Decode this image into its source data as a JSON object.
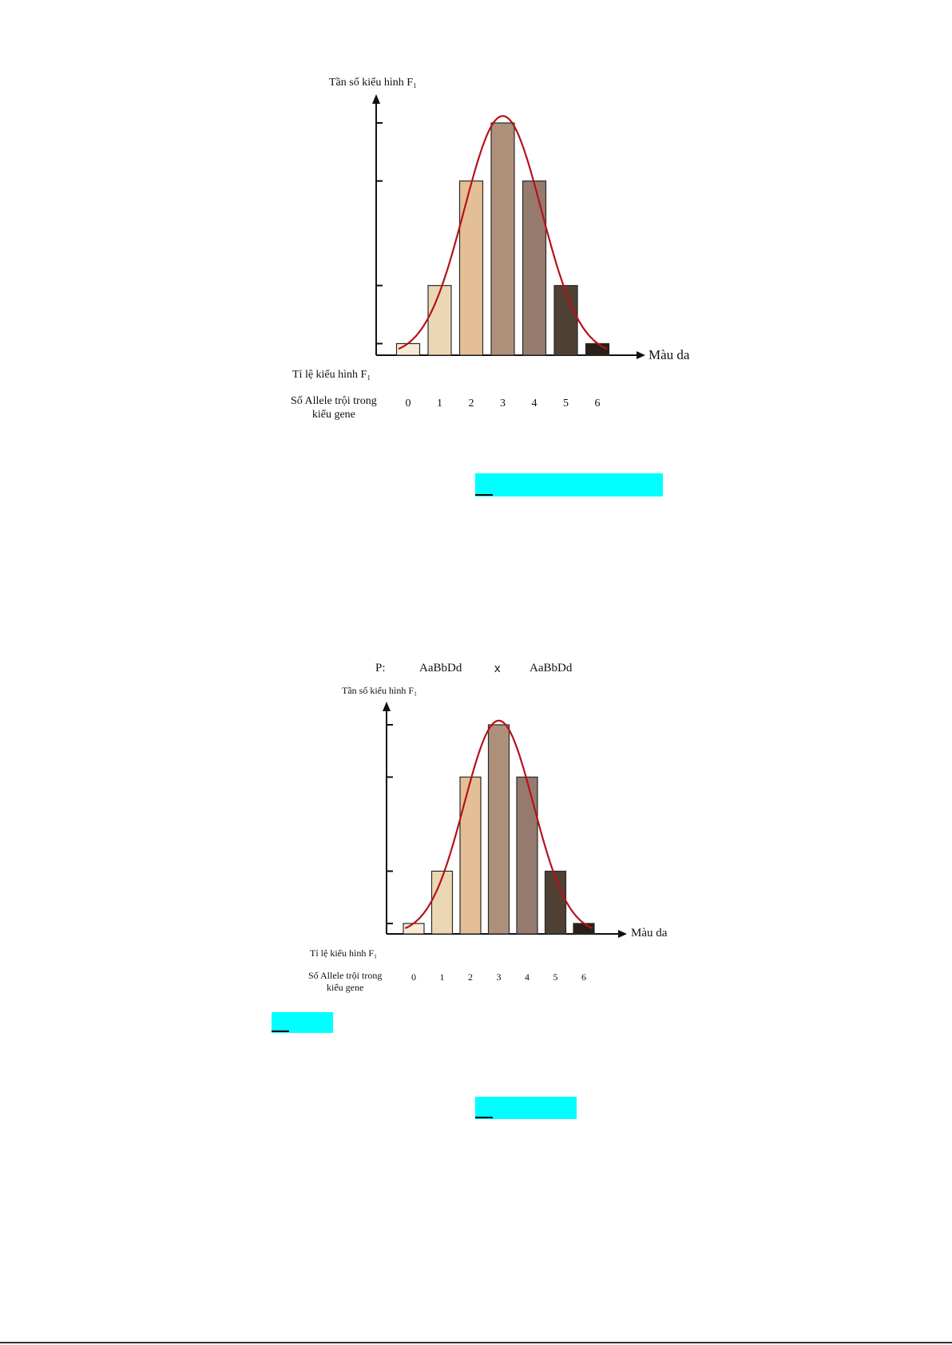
{
  "colors": {
    "curve": "#b5121b",
    "axis": "#111111",
    "highlight": "#00ffff",
    "bars": [
      "#f8ead6",
      "#ecd7b5",
      "#e4bf96",
      "#ae907a",
      "#957a6d",
      "#4f4034",
      "#2a2018"
    ]
  },
  "figure1": {
    "ylabel": "Tần số kiểu hình F₁",
    "xlabel": "Màu da",
    "row1_label": "Tỉ lệ kiểu hình F₁",
    "row2_label_line1": "Số Allele trội trong",
    "row2_label_line2": "kiểu gene"
  },
  "figure2": {
    "cross_prefix": "P:",
    "parent1": "AaBbDd",
    "cross_symbol": "x",
    "parent2": "AaBbDd",
    "ylabel": "Tần số kiểu hình F₁",
    "xlabel": "Màu da",
    "row1_label": "Tỉ lệ kiểu hình F₁",
    "row2_label_line1": "Số Allele trội trong",
    "row2_label_line2": "kiểu gene"
  },
  "chart_data": [
    {
      "type": "bar",
      "categories": [
        "0",
        "1",
        "2",
        "3",
        "4",
        "5",
        "6"
      ],
      "values": [
        1,
        6,
        15,
        20,
        15,
        6,
        1
      ],
      "ylabel": "Tần số kiểu hình F₁",
      "xlabel": "Màu da",
      "ylim": [
        0,
        20
      ],
      "grid": false,
      "legend": "none",
      "overlay": "normal-curve"
    },
    {
      "type": "bar",
      "categories": [
        "0",
        "1",
        "2",
        "3",
        "4",
        "5",
        "6"
      ],
      "values": [
        1,
        6,
        15,
        20,
        15,
        6,
        1
      ],
      "ylabel": "Tần số kiểu hình F₁",
      "xlabel": "Màu da",
      "ylim": [
        0,
        20
      ],
      "grid": false,
      "legend": "none",
      "overlay": "normal-curve"
    }
  ]
}
